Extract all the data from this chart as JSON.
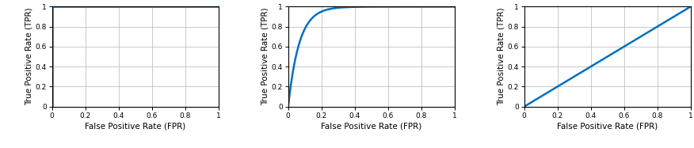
{
  "line_color": "#0070C0",
  "line_width": 1.8,
  "bg_color": "#FFFFFF",
  "grid_color": "#C0C0C0",
  "axis_bg": "#FFFFFF",
  "xlabel": "False Positive Rate (FPR)",
  "ylabel": "True Positive Rate (TPR)",
  "tick_vals": [
    0,
    0.2,
    0.4,
    0.6,
    0.8,
    1
  ],
  "tick_labels": [
    "0",
    "0.2",
    "0.4",
    "0.6",
    "0.8",
    "1"
  ],
  "xlim": [
    0,
    1
  ],
  "ylim": [
    0,
    1
  ],
  "roc_standard_alpha": 15,
  "plots": [
    {
      "type": "perfect"
    },
    {
      "type": "standard"
    },
    {
      "type": "random"
    }
  ]
}
